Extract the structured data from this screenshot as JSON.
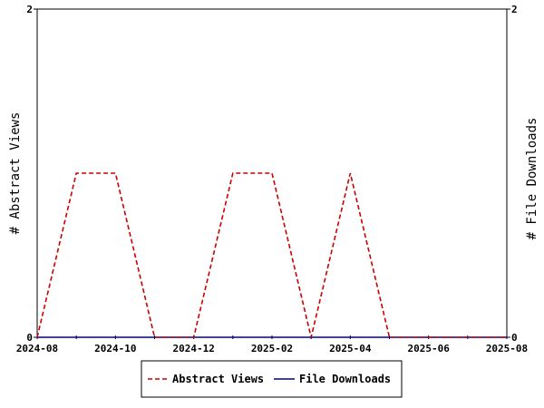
{
  "chart_data": {
    "type": "line",
    "x": [
      "2024-08",
      "2024-09",
      "2024-10",
      "2024-11",
      "2024-12",
      "2025-01",
      "2025-02",
      "2025-03",
      "2025-04",
      "2025-05",
      "2025-06",
      "2025-07",
      "2025-08"
    ],
    "x_tick_labels": [
      "2024-08",
      "2024-10",
      "2024-12",
      "2025-02",
      "2025-04",
      "2025-06",
      "2025-08"
    ],
    "series": [
      {
        "name": "Abstract Views",
        "values": [
          0,
          1,
          1,
          0,
          0,
          1,
          1,
          0,
          1,
          0,
          0,
          0,
          0
        ],
        "color": "#cc0000",
        "style": "dashed"
      },
      {
        "name": "File Downloads",
        "values": [
          0,
          0,
          0,
          0,
          0,
          0,
          0,
          0,
          0,
          0,
          0,
          0,
          0
        ],
        "color": "#000099",
        "style": "solid"
      }
    ],
    "ylabel_left": "# Abstract Views",
    "ylabel_right": "# File Downloads",
    "ylim": [
      0,
      2
    ],
    "y_ticks": [
      0,
      2
    ],
    "legend_position": "bottom"
  }
}
